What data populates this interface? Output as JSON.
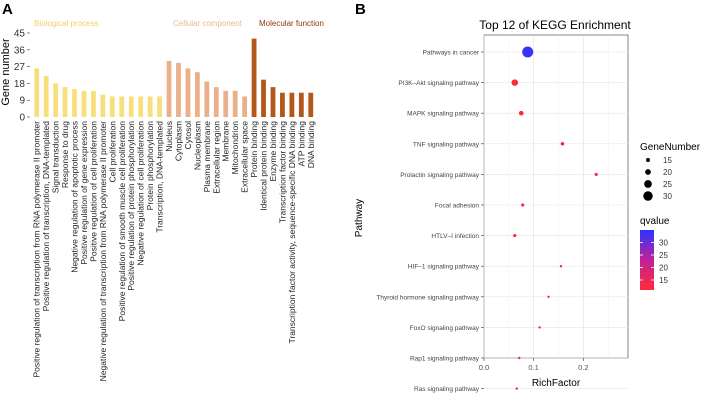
{
  "panel_labels": {
    "a": "A",
    "b": "B"
  },
  "colors": {
    "bio": "#f7df7c",
    "cell": "#eab089",
    "mol": "#b4581a",
    "bio_text": "#f3cf60",
    "cell_text": "#e9ba8c",
    "mol_text": "#8b3a0a",
    "q_low": "#ff2a3a",
    "q_high": "#2a34ff"
  },
  "chart_data": [
    {
      "type": "bar",
      "ylabel": "Gene number",
      "ylim": [
        0,
        45
      ],
      "yticks": [
        0,
        9,
        18,
        27,
        36,
        45
      ],
      "groups": [
        {
          "name": "Biological process",
          "color_key": "bio",
          "categories": [
            "Positive regulation of transcription from RNA polymerase II promoter",
            "Positive regulation of transcription, DNA-templated",
            "Signal transduction",
            "Response to drug",
            "Negative regulation of apoptotic process",
            "Positive regulation of gene expression",
            "Positive regulation of cell proliferation",
            "Negative regulation of transcription from RNA polymerase II promoter",
            "Cell proliferation",
            "Positive regulation of smooth muscle cell proliferation",
            "Positive regulation of protein phosphorylation",
            "Negative regulation of cell proliferation",
            "Protein phosphorylation",
            "Transcription, DNA-templated"
          ],
          "values": [
            26,
            22,
            18,
            16,
            15,
            14,
            14,
            12,
            11,
            11,
            11,
            11,
            11,
            11
          ]
        },
        {
          "name": "Cellular component",
          "color_key": "cell",
          "categories": [
            "Nucleus",
            "Cytoplasm",
            "Cytosol",
            "Nucleoplasm",
            "Plasma membrane",
            "Extracellular region",
            "Membrane",
            "Mitochondrion",
            "Extracellular space"
          ],
          "values": [
            30,
            29,
            26,
            24,
            19,
            16,
            14,
            14,
            11
          ]
        },
        {
          "name": "Molecular function",
          "color_key": "mol",
          "categories": [
            "Protein binding",
            "Identical protein binding",
            "Enzyme binding",
            "Transcription factor binding",
            "Transcription factor activity, sequence-specific DNA binding",
            "ATP binding",
            "DNA binding"
          ],
          "values": [
            42,
            20,
            16,
            13,
            13,
            13,
            13
          ]
        }
      ]
    },
    {
      "type": "scatter",
      "title": "Top 12 of KEGG Enrichment",
      "xlabel": "RichFactor",
      "ylabel": "Pathway",
      "xlim": [
        0,
        0.29
      ],
      "xticks": [
        0.0,
        0.1,
        0.2
      ],
      "xtick_labels": [
        "0.0",
        "0.1",
        "0.2"
      ],
      "points": [
        {
          "pathway": "Pathways in cancer",
          "rich": 0.088,
          "count": 34,
          "q": 34
        },
        {
          "pathway": "PI3K–Akt signaling pathway",
          "rich": 0.062,
          "count": 22,
          "q": 10
        },
        {
          "pathway": "MAPK signaling pathway",
          "rich": 0.075,
          "count": 17,
          "q": 12
        },
        {
          "pathway": "TNF signaling pathway",
          "rich": 0.158,
          "count": 14,
          "q": 14
        },
        {
          "pathway": "Prolactin signaling pathway",
          "rich": 0.226,
          "count": 13,
          "q": 15
        },
        {
          "pathway": "Focal adhesion",
          "rich": 0.078,
          "count": 13,
          "q": 12
        },
        {
          "pathway": "HTLV–I infection",
          "rich": 0.062,
          "count": 13,
          "q": 11
        },
        {
          "pathway": "HIF–1 signaling pathway",
          "rich": 0.155,
          "count": 11,
          "q": 16
        },
        {
          "pathway": "Thyroid hormone signaling pathway",
          "rich": 0.13,
          "count": 11,
          "q": 17
        },
        {
          "pathway": "FoxO signaling pathway",
          "rich": 0.112,
          "count": 11,
          "q": 17
        },
        {
          "pathway": "Rap1 signaling pathway",
          "rich": 0.071,
          "count": 11,
          "q": 16
        },
        {
          "pathway": "Ras signaling pathway",
          "rich": 0.066,
          "count": 11,
          "q": 15
        }
      ],
      "size_legend": {
        "title": "GeneNumber",
        "values": [
          15,
          20,
          25,
          30
        ]
      },
      "color_legend": {
        "title": "qvalue",
        "ticks": [
          15,
          20,
          25,
          30
        ],
        "range": [
          11,
          35
        ]
      }
    }
  ]
}
